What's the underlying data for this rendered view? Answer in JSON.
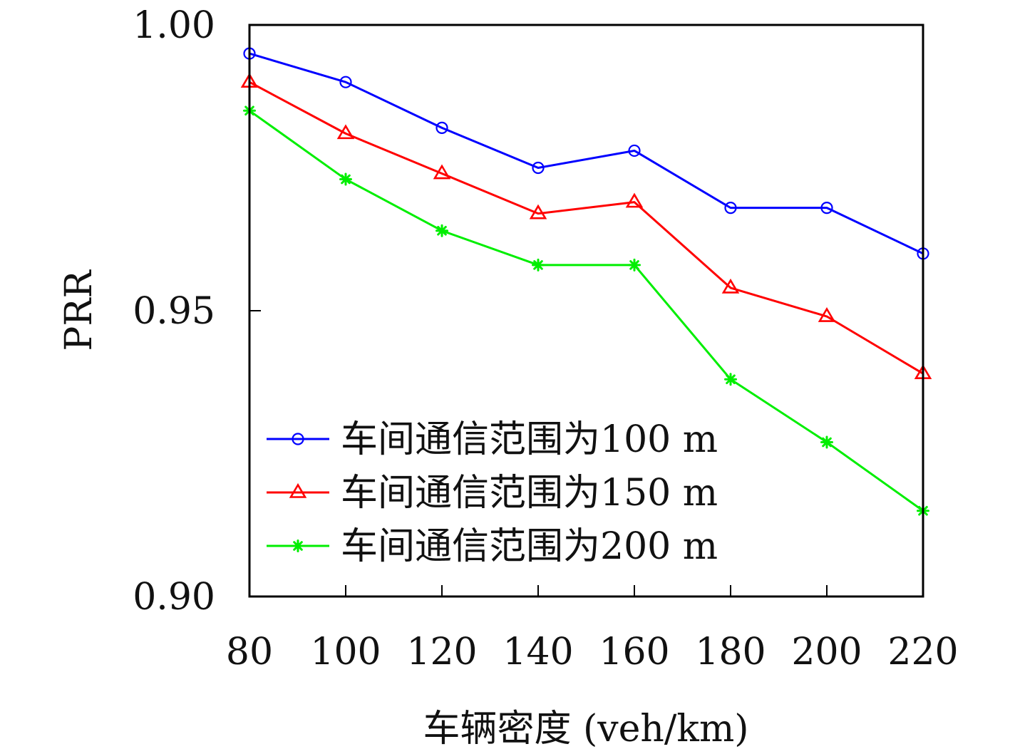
{
  "chart_data": {
    "type": "line",
    "title": "",
    "xlabel": "车辆密度 (veh/km)",
    "ylabel": "PRR",
    "x": [
      80,
      100,
      120,
      140,
      160,
      180,
      200,
      220
    ],
    "x_tick_labels": [
      "80",
      "100",
      "120",
      "140",
      "160",
      "180",
      "200",
      "220"
    ],
    "y_ticks": [
      0.9,
      0.95,
      1.0
    ],
    "y_tick_labels": [
      "0.90",
      "0.95",
      "1.00"
    ],
    "xlim": [
      80,
      220
    ],
    "ylim": [
      0.9,
      1.0
    ],
    "grid": false,
    "legend_position": "bottom-left",
    "series": [
      {
        "name": "车间通信范围为100 m",
        "color": "#0000ff",
        "marker": "circle",
        "values": [
          0.995,
          0.99,
          0.982,
          0.975,
          0.978,
          0.968,
          0.968,
          0.96
        ]
      },
      {
        "name": "车间通信范围为150 m",
        "color": "#ff0000",
        "marker": "triangle",
        "values": [
          0.99,
          0.981,
          0.974,
          0.967,
          0.969,
          0.954,
          0.949,
          0.939
        ]
      },
      {
        "name": "车间通信范围为200 m",
        "color": "#00ee00",
        "marker": "asterisk",
        "values": [
          0.985,
          0.973,
          0.964,
          0.958,
          0.958,
          0.938,
          0.927,
          0.915
        ]
      }
    ]
  }
}
